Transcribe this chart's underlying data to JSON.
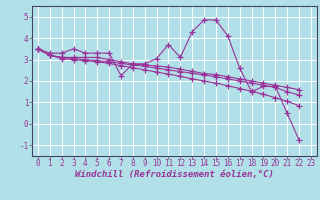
{
  "background_color": "#b2e0e8",
  "grid_color": "#ffffff",
  "line_color": "#993399",
  "xlabel": "Windchill (Refroidissement éolien,°C)",
  "xlim": [
    -0.5,
    23.5
  ],
  "ylim": [
    -1.5,
    5.5
  ],
  "yticks": [
    -1,
    0,
    1,
    2,
    3,
    4,
    5
  ],
  "xticks": [
    0,
    1,
    2,
    3,
    4,
    5,
    6,
    7,
    8,
    9,
    10,
    11,
    12,
    13,
    14,
    15,
    16,
    17,
    18,
    19,
    20,
    21,
    22,
    23
  ],
  "series": [
    [
      3.5,
      3.3,
      3.3,
      3.5,
      3.3,
      3.3,
      3.3,
      2.25,
      2.8,
      2.8,
      3.05,
      3.7,
      3.1,
      4.3,
      4.85,
      4.85,
      4.1,
      2.6,
      1.5,
      1.75,
      1.75,
      0.5,
      -0.75
    ],
    [
      3.5,
      3.2,
      3.1,
      3.1,
      3.1,
      3.1,
      3.0,
      2.9,
      2.8,
      2.75,
      2.7,
      2.65,
      2.55,
      2.45,
      2.35,
      2.3,
      2.2,
      2.1,
      2.0,
      1.9,
      1.8,
      1.7,
      1.6
    ],
    [
      3.5,
      3.2,
      3.1,
      3.05,
      3.0,
      2.95,
      2.9,
      2.82,
      2.75,
      2.68,
      2.6,
      2.52,
      2.44,
      2.36,
      2.28,
      2.2,
      2.1,
      2.0,
      1.9,
      1.8,
      1.7,
      1.5,
      1.35
    ],
    [
      3.5,
      3.2,
      3.05,
      3.0,
      2.95,
      2.9,
      2.82,
      2.72,
      2.62,
      2.52,
      2.42,
      2.32,
      2.22,
      2.1,
      2.0,
      1.9,
      1.78,
      1.65,
      1.52,
      1.38,
      1.22,
      1.05,
      0.85
    ]
  ],
  "marker": "+",
  "markersize": 4,
  "linewidth": 0.8,
  "xlabel_fontsize": 6.5,
  "tick_fontsize": 5.5,
  "label_color": "#993399"
}
